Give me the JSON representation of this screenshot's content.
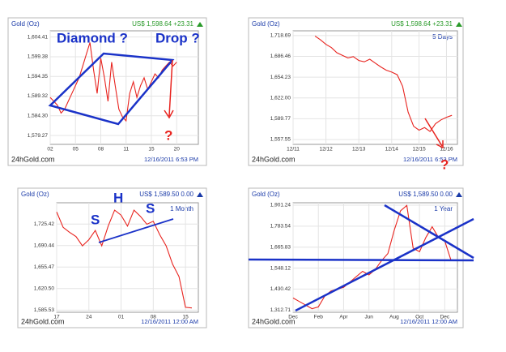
{
  "chart_data": [
    {
      "type": "line",
      "title": "Gold (Oz)",
      "price": "US$ 1,598.64 +23.31",
      "price_color": "#2a9a2a",
      "source": "24hGold.com",
      "timestamp": "12/16/2011 6:53 PM",
      "color": "#e8231e",
      "grid": true,
      "categories": [
        "02",
        null,
        null,
        null,
        null,
        null,
        null,
        "05",
        null,
        null,
        null,
        null,
        null,
        null,
        "08",
        null,
        null,
        null,
        null,
        null,
        null,
        "11",
        null,
        null,
        null,
        null,
        null,
        null,
        "15",
        null,
        null,
        null,
        null,
        null,
        null,
        "20"
      ],
      "values": [
        1589,
        1588,
        1587,
        1585,
        1586,
        1588,
        1590,
        1592,
        1594,
        1597,
        1600,
        1603,
        1596,
        1590,
        1599,
        1594,
        1588,
        1598,
        1592,
        1586,
        1584,
        1583,
        1590,
        1593,
        1589,
        1592,
        1594,
        1591,
        1593,
        1595,
        1594,
        1596,
        1597,
        1598,
        1597,
        1598
      ],
      "ylim": [
        1577,
        1606
      ],
      "yticks": [
        {
          "value": 1579.27,
          "label": "1,579.27"
        },
        {
          "value": 1584.3,
          "label": "1,584.30"
        },
        {
          "value": 1589.32,
          "label": "1,589.32"
        },
        {
          "value": 1594.35,
          "label": "1,594.35"
        },
        {
          "value": 1599.38,
          "label": "1,599.38"
        },
        {
          "value": 1604.41,
          "label": "1,604.41"
        }
      ],
      "annotations": [
        "Diamond ?",
        "Drop ?",
        "?"
      ]
    },
    {
      "type": "line",
      "title": "Gold (Oz)",
      "price": "US$ 1,598.64 +23.31",
      "price_color": "#2a9a2a",
      "period": "5 Days",
      "source": "24hGold.com",
      "timestamp": "12/16/2011 6:53 PM",
      "color": "#e8231e",
      "grid": true,
      "categories": [
        "12/11",
        null,
        null,
        null,
        null,
        null,
        "12/12",
        null,
        null,
        null,
        null,
        null,
        "12/13",
        null,
        null,
        null,
        null,
        null,
        "12/14",
        null,
        null,
        null,
        null,
        "12/15",
        null,
        null,
        null,
        null,
        "12/16",
        null
      ],
      "values": [
        null,
        null,
        null,
        null,
        1718,
        1712,
        1705,
        1700,
        1692,
        1688,
        1684,
        1686,
        1680,
        1678,
        1682,
        1676,
        1670,
        1665,
        1662,
        1658,
        1640,
        1600,
        1578,
        1572,
        1576,
        1570,
        1582,
        1588,
        1592,
        1595
      ],
      "ylim": [
        1550,
        1726
      ],
      "yticks": [
        {
          "value": 1557.55,
          "label": "1,557.55"
        },
        {
          "value": 1589.77,
          "label": "1,589.77"
        },
        {
          "value": 1622.0,
          "label": "1,622.00"
        },
        {
          "value": 1654.23,
          "label": "1,654.23"
        },
        {
          "value": 1686.46,
          "label": "1,686.46"
        },
        {
          "value": 1718.69,
          "label": "1,718.69"
        }
      ],
      "annotations": [
        "?"
      ]
    },
    {
      "type": "line",
      "title": "Gold (Oz)",
      "price": "US$ 1,589.50 0.00",
      "price_color": "#1a3aa8",
      "period": "1 Month",
      "source": "24hGold.com",
      "timestamp": "12/16/2011 12:00 AM",
      "color": "#e8231e",
      "grid": true,
      "categories": [
        "17",
        null,
        null,
        null,
        null,
        "24",
        null,
        null,
        null,
        null,
        "01",
        null,
        null,
        null,
        null,
        "08",
        null,
        null,
        null,
        null,
        "15",
        null
      ],
      "values": [
        1745,
        1720,
        1712,
        1705,
        1690,
        1700,
        1715,
        1690,
        1722,
        1748,
        1740,
        1722,
        1748,
        1738,
        1725,
        1730,
        1708,
        1690,
        1660,
        1640,
        1590,
        1589
      ],
      "ylim": [
        1582,
        1760
      ],
      "yticks": [
        {
          "value": 1585.53,
          "label": "1,585.53"
        },
        {
          "value": 1620.5,
          "label": "1,620.50"
        },
        {
          "value": 1655.47,
          "label": "1,655.47"
        },
        {
          "value": 1690.44,
          "label": "1,690.44"
        },
        {
          "value": 1725.42,
          "label": "1,725.42"
        }
      ],
      "annotations": [
        "S",
        "H",
        "S"
      ]
    },
    {
      "type": "line",
      "title": "Gold (Oz)",
      "price": "US$ 1,589.50 0.00",
      "price_color": "#1a3aa8",
      "period": "1 Year",
      "source": "24hGold.com",
      "timestamp": "12/16/2011 12:00 AM",
      "color": "#e8231e",
      "grid": true,
      "categories": [
        "Dec",
        null,
        null,
        null,
        "Feb",
        null,
        null,
        null,
        "Apr",
        null,
        null,
        null,
        "Jun",
        null,
        null,
        null,
        "Aug",
        null,
        null,
        null,
        "Oct",
        null,
        null,
        null,
        "Dec",
        null
      ],
      "values": [
        1380,
        1360,
        1340,
        1320,
        1330,
        1390,
        1420,
        1430,
        1440,
        1470,
        1500,
        1530,
        1510,
        1540,
        1590,
        1630,
        1760,
        1870,
        1900,
        1660,
        1640,
        1720,
        1780,
        1720,
        1700,
        1590
      ],
      "ylim": [
        1300,
        1915
      ],
      "yticks": [
        {
          "value": 1312.71,
          "label": "1,312.71"
        },
        {
          "value": 1430.42,
          "label": "1,430.42"
        },
        {
          "value": 1548.12,
          "label": "1,548.12"
        },
        {
          "value": 1665.83,
          "label": "1,665.83"
        },
        {
          "value": 1783.54,
          "label": "1,783.54"
        },
        {
          "value": 1901.24,
          "label": "1,901.24"
        }
      ],
      "annotations": []
    }
  ]
}
